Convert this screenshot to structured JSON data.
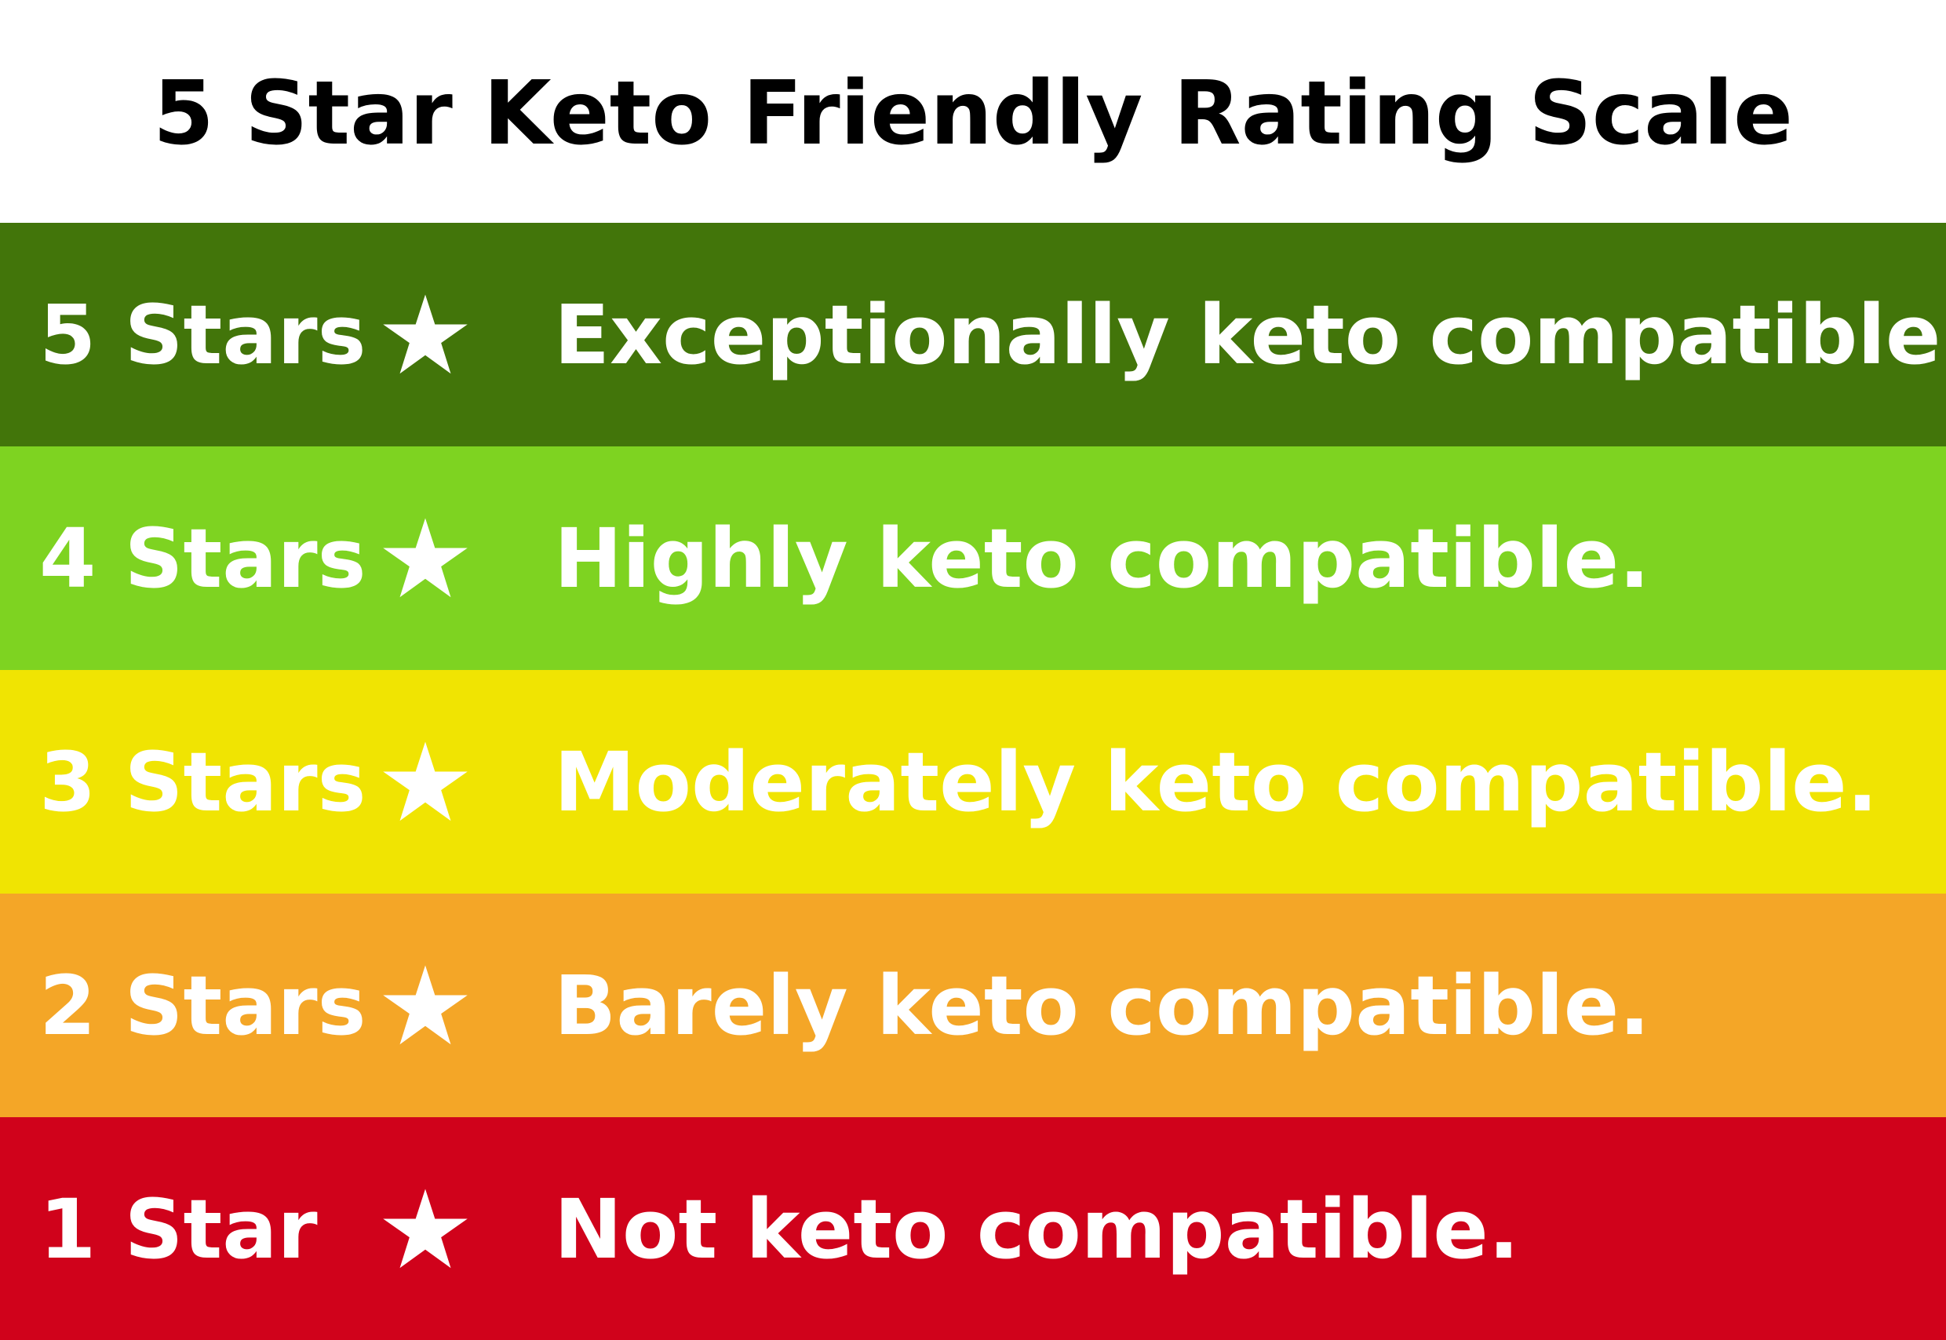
{
  "title": "5 Star Keto Friendly Rating Scale",
  "rows": [
    {
      "count_label": "5 Stars",
      "star_icon": "star-icon",
      "description": "Exceptionally keto compatible.",
      "color": "#42750a"
    },
    {
      "count_label": "4 Stars",
      "star_icon": "star-icon",
      "description": "Highly keto compatible.",
      "color": "#7ed321"
    },
    {
      "count_label": "3 Stars",
      "star_icon": "star-icon",
      "description": "Moderately keto compatible.",
      "color": "#f0e402"
    },
    {
      "count_label": "2 Stars",
      "star_icon": "star-icon",
      "description": "Barely keto compatible.",
      "color": "#f4a627"
    },
    {
      "count_label": "1 Star",
      "star_icon": "star-icon",
      "description": "Not keto compatible.",
      "color": "#d0021b"
    }
  ]
}
